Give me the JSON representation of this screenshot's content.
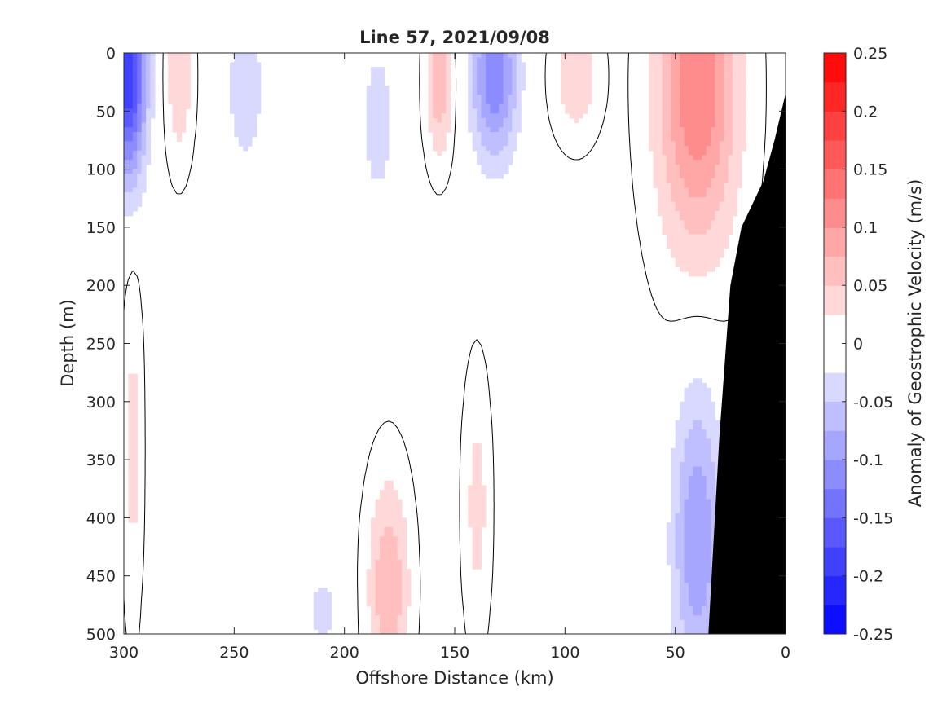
{
  "chart_data": {
    "type": "heatmap",
    "title": "Line 57, 2021/09/08",
    "xlabel": "Offshore Distance (km)",
    "ylabel": "Depth (m)",
    "xlim": [
      300,
      0
    ],
    "ylim": [
      0,
      500
    ],
    "x_reversed": true,
    "y_reversed": true,
    "x_ticks": [
      300,
      250,
      200,
      150,
      100,
      50,
      0
    ],
    "y_ticks": [
      0,
      50,
      100,
      150,
      200,
      250,
      300,
      350,
      400,
      450,
      500
    ],
    "colorbar": {
      "label": "Anomaly of Geostrophic Velocity (m/s)",
      "range": [
        -0.25,
        0.25
      ],
      "levels": [
        -0.25,
        -0.225,
        -0.2,
        -0.175,
        -0.15,
        -0.125,
        -0.1,
        -0.075,
        -0.05,
        -0.025,
        0,
        0.025,
        0.05,
        0.075,
        0.1,
        0.125,
        0.15,
        0.175,
        0.2,
        0.225,
        0.25
      ],
      "tick_values": [
        -0.25,
        -0.2,
        -0.15,
        -0.1,
        -0.05,
        0,
        0.05,
        0.1,
        0.15,
        0.2,
        0.25
      ],
      "tick_labels": [
        "-0.25",
        "-0.2",
        "-0.15",
        "-0.1",
        "-0.05",
        "0",
        "0.05",
        "0.1",
        "0.15",
        "0.2",
        "0.25"
      ],
      "colors": {
        "negative_max": "#0000ff",
        "zero": "#ffffff",
        "positive_max": "#ff0000"
      }
    },
    "contour_interval": 0.025,
    "zero_contour_color": "#000000",
    "seafloor_color": "#000000",
    "seafloor": [
      [
        0,
        35
      ],
      [
        5,
        75
      ],
      [
        10,
        110
      ],
      [
        20,
        150
      ],
      [
        25,
        200
      ],
      [
        30,
        330
      ],
      [
        35,
        500
      ]
    ],
    "features": [
      {
        "name": "nearshore-positive-core",
        "center_km": 40,
        "center_depth_m": 30,
        "peak_value": 0.125,
        "x_half_width_km": 22,
        "depth_half_extent_m": 170
      },
      {
        "name": "nearshore-negative-deep",
        "center_km": 40,
        "center_depth_m": 420,
        "peak_value": -0.1,
        "x_half_width_km": 14,
        "depth_half_extent_m": 160
      },
      {
        "name": "offshore-edge-negative",
        "center_km": 298,
        "center_depth_m": 20,
        "peak_value": -0.2,
        "x_half_width_km": 10,
        "depth_half_extent_m": 110
      },
      {
        "name": "eddy-negative-135",
        "center_km": 132,
        "center_depth_m": 20,
        "peak_value": -0.125,
        "x_half_width_km": 13,
        "depth_half_extent_m": 90
      },
      {
        "name": "eddy-positive-157",
        "center_km": 157,
        "center_depth_m": 25,
        "peak_value": 0.075,
        "x_half_width_km": 7,
        "depth_half_extent_m": 75
      },
      {
        "name": "eddy-positive-275",
        "center_km": 275,
        "center_depth_m": 20,
        "peak_value": 0.05,
        "x_half_width_km": 7,
        "depth_half_extent_m": 85
      },
      {
        "name": "eddy-negative-245",
        "center_km": 245,
        "center_depth_m": 30,
        "peak_value": -0.05,
        "x_half_width_km": 10,
        "depth_half_extent_m": 80
      },
      {
        "name": "eddy-positive-95",
        "center_km": 95,
        "center_depth_m": 20,
        "peak_value": 0.05,
        "x_half_width_km": 12,
        "depth_half_extent_m": 60
      },
      {
        "name": "deep-positive-180",
        "center_km": 180,
        "center_depth_m": 460,
        "peak_value": 0.075,
        "x_half_width_km": 11,
        "depth_half_extent_m": 110
      },
      {
        "name": "positive-140-mid",
        "center_km": 140,
        "center_depth_m": 390,
        "peak_value": 0.035,
        "x_half_width_km": 7,
        "depth_half_extent_m": 130
      },
      {
        "name": "negative-185-upper",
        "center_km": 185,
        "center_depth_m": 60,
        "peak_value": -0.035,
        "x_half_width_km": 12,
        "depth_half_extent_m": 110
      },
      {
        "name": "positive-edge-deep",
        "center_km": 296,
        "center_depth_m": 340,
        "peak_value": 0.035,
        "x_half_width_km": 5,
        "depth_half_extent_m": 170
      },
      {
        "name": "negative-210-deep",
        "center_km": 210,
        "center_depth_m": 480,
        "peak_value": -0.035,
        "x_half_width_km": 10,
        "depth_half_extent_m": 50
      }
    ]
  }
}
